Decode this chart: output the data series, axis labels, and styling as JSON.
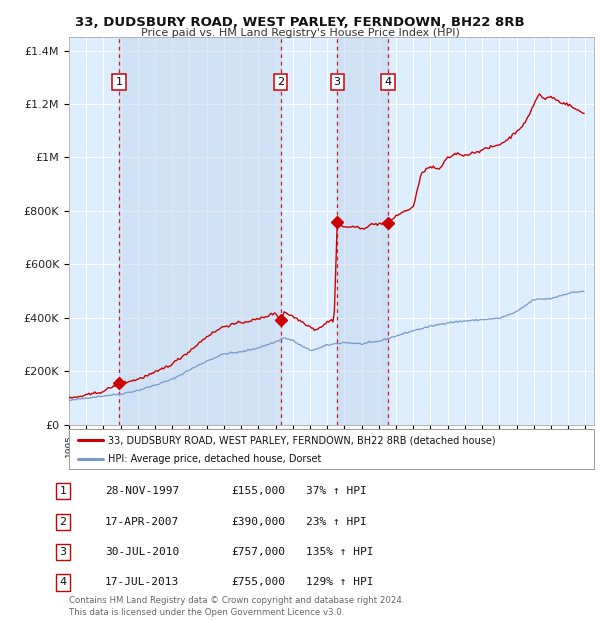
{
  "title": "33, DUDSBURY ROAD, WEST PARLEY, FERNDOWN, BH22 8RB",
  "subtitle": "Price paid vs. HM Land Registry's House Price Index (HPI)",
  "background_color": "#ffffff",
  "plot_bg_color": "#ddeeff",
  "grid_color": "#ffffff",
  "red_line_color": "#cc0000",
  "blue_line_color": "#7799cc",
  "sale_marker_color": "#cc0000",
  "dashed_line_color": "#cc0000",
  "ylim": [
    0,
    1450000
  ],
  "yticks": [
    0,
    200000,
    400000,
    600000,
    800000,
    1000000,
    1200000,
    1400000
  ],
  "ytick_labels": [
    "£0",
    "£200K",
    "£400K",
    "£600K",
    "£800K",
    "£1M",
    "£1.2M",
    "£1.4M"
  ],
  "xlim_start": 1995.0,
  "xlim_end": 2025.5,
  "sale_dates_year": [
    1997.91,
    2007.29,
    2010.58,
    2013.54
  ],
  "sale_prices": [
    155000,
    390000,
    757000,
    755000
  ],
  "sale_labels": [
    "1",
    "2",
    "3",
    "4"
  ],
  "legend_line1": "33, DUDSBURY ROAD, WEST PARLEY, FERNDOWN, BH22 8RB (detached house)",
  "legend_line2": "HPI: Average price, detached house, Dorset",
  "table_rows": [
    [
      "1",
      "28-NOV-1997",
      "£155,000",
      "37% ↑ HPI"
    ],
    [
      "2",
      "17-APR-2007",
      "£390,000",
      "23% ↑ HPI"
    ],
    [
      "3",
      "30-JUL-2010",
      "£757,000",
      "135% ↑ HPI"
    ],
    [
      "4",
      "17-JUL-2013",
      "£755,000",
      "129% ↑ HPI"
    ]
  ],
  "footer_text": "Contains HM Land Registry data © Crown copyright and database right 2024.\nThis data is licensed under the Open Government Licence v3.0.",
  "copyright_color": "#666666",
  "hpi_keypoints": [
    [
      1995.0,
      90000
    ],
    [
      1996.0,
      100000
    ],
    [
      1997.0,
      108000
    ],
    [
      1998.0,
      115000
    ],
    [
      1999.0,
      128000
    ],
    [
      2000.0,
      148000
    ],
    [
      2001.0,
      170000
    ],
    [
      2002.0,
      205000
    ],
    [
      2003.0,
      238000
    ],
    [
      2004.0,
      265000
    ],
    [
      2005.0,
      272000
    ],
    [
      2006.0,
      288000
    ],
    [
      2007.0,
      310000
    ],
    [
      2007.5,
      325000
    ],
    [
      2008.0,
      315000
    ],
    [
      2008.5,
      295000
    ],
    [
      2009.0,
      278000
    ],
    [
      2009.5,
      285000
    ],
    [
      2010.0,
      298000
    ],
    [
      2011.0,
      308000
    ],
    [
      2012.0,
      302000
    ],
    [
      2013.0,
      312000
    ],
    [
      2014.0,
      332000
    ],
    [
      2015.0,
      352000
    ],
    [
      2016.0,
      368000
    ],
    [
      2017.0,
      382000
    ],
    [
      2018.0,
      388000
    ],
    [
      2019.0,
      393000
    ],
    [
      2020.0,
      398000
    ],
    [
      2021.0,
      422000
    ],
    [
      2022.0,
      468000
    ],
    [
      2023.0,
      472000
    ],
    [
      2024.0,
      492000
    ],
    [
      2024.9,
      500000
    ]
  ],
  "red_keypoints": [
    [
      1995.0,
      98000
    ],
    [
      1996.0,
      110000
    ],
    [
      1997.0,
      125000
    ],
    [
      1997.91,
      155000
    ],
    [
      1998.5,
      162000
    ],
    [
      1999.0,
      170000
    ],
    [
      2000.0,
      195000
    ],
    [
      2001.0,
      228000
    ],
    [
      2002.0,
      275000
    ],
    [
      2003.0,
      330000
    ],
    [
      2004.0,
      368000
    ],
    [
      2005.0,
      382000
    ],
    [
      2006.0,
      395000
    ],
    [
      2007.0,
      418000
    ],
    [
      2007.29,
      390000
    ],
    [
      2007.5,
      422000
    ],
    [
      2007.8,
      412000
    ],
    [
      2008.2,
      398000
    ],
    [
      2008.8,
      375000
    ],
    [
      2009.3,
      355000
    ],
    [
      2009.8,
      372000
    ],
    [
      2010.0,
      385000
    ],
    [
      2010.4,
      392000
    ],
    [
      2010.58,
      757000
    ],
    [
      2010.75,
      748000
    ],
    [
      2011.0,
      738000
    ],
    [
      2011.5,
      742000
    ],
    [
      2012.0,
      732000
    ],
    [
      2012.5,
      748000
    ],
    [
      2013.0,
      752000
    ],
    [
      2013.54,
      755000
    ],
    [
      2014.0,
      782000
    ],
    [
      2014.5,
      798000
    ],
    [
      2015.0,
      815000
    ],
    [
      2015.5,
      945000
    ],
    [
      2016.0,
      965000
    ],
    [
      2016.5,
      955000
    ],
    [
      2017.0,
      998000
    ],
    [
      2017.5,
      1015000
    ],
    [
      2018.0,
      1008000
    ],
    [
      2018.5,
      1018000
    ],
    [
      2019.0,
      1028000
    ],
    [
      2019.5,
      1038000
    ],
    [
      2020.0,
      1048000
    ],
    [
      2020.5,
      1068000
    ],
    [
      2021.0,
      1098000
    ],
    [
      2021.5,
      1128000
    ],
    [
      2022.0,
      1198000
    ],
    [
      2022.3,
      1238000
    ],
    [
      2022.6,
      1218000
    ],
    [
      2023.0,
      1228000
    ],
    [
      2023.5,
      1208000
    ],
    [
      2024.0,
      1198000
    ],
    [
      2024.5,
      1178000
    ],
    [
      2024.9,
      1165000
    ]
  ]
}
